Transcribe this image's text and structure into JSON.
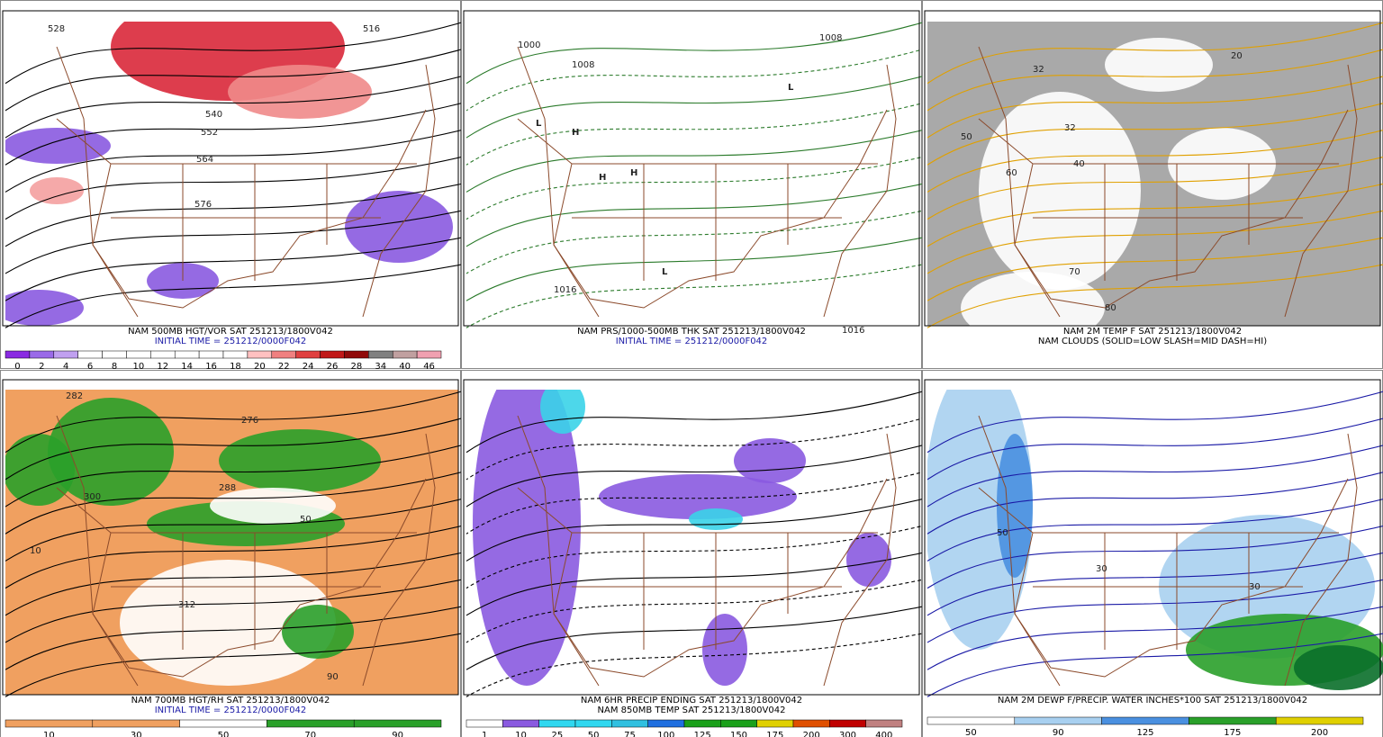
{
  "panels": [
    {
      "captions": [
        "NAM 500MB HGT/VOR SAT 251213/1800V042",
        "INITIAL TIME = 251212/0000F042"
      ],
      "colorbar": [
        "0",
        "2",
        "4",
        "6",
        "8",
        "10",
        "12",
        "14",
        "16",
        "18",
        "20",
        "22",
        "24",
        "26",
        "28",
        "34",
        "40",
        "46"
      ],
      "map_labels": [
        "528",
        "516",
        "540",
        "552",
        "564",
        "576"
      ]
    },
    {
      "captions": [
        "NAM PRS/1000-500MB THK SAT 251213/1800V042",
        "INITIAL TIME = 251212/0000F042"
      ],
      "colorbar": [],
      "map_labels": [
        "1000",
        "1008",
        "1008",
        "1016",
        "1016",
        "L",
        "L",
        "L",
        "H",
        "H",
        "H"
      ]
    },
    {
      "captions": [
        "NAM 2M TEMP F SAT 251213/1800V042",
        "NAM CLOUDS (SOLID=LOW SLASH=MID DASH=HI)"
      ],
      "colorbar": [],
      "map_labels": [
        "20",
        "32",
        "32",
        "40",
        "50",
        "60",
        "70",
        "80"
      ]
    },
    {
      "captions": [
        "NAM 700MB HGT/RH SAT 251213/1800V042",
        "INITIAL TIME = 251212/0000F042"
      ],
      "colorbar": [
        "10",
        "30",
        "50",
        "70",
        "90"
      ],
      "map_labels": [
        "282",
        "276",
        "288",
        "300",
        "312",
        "10",
        "50",
        "90"
      ]
    },
    {
      "captions": [
        "NAM 6HR PRECIP ENDING SAT 251213/1800V042",
        "NAM 850MB TEMP SAT 251213/1800V042"
      ],
      "colorbar": [
        "1",
        "10",
        "25",
        "50",
        "75",
        "100",
        "125",
        "150",
        "175",
        "200",
        "300",
        "400"
      ],
      "map_labels": []
    },
    {
      "captions": [
        "NAM 2M DEWP F/PRECIP. WATER INCHES*100 SAT 251213/1800V042"
      ],
      "colorbar": [
        "50",
        "90",
        "125",
        "175",
        "200"
      ],
      "map_labels": [
        "50",
        "30",
        "30"
      ]
    }
  ]
}
